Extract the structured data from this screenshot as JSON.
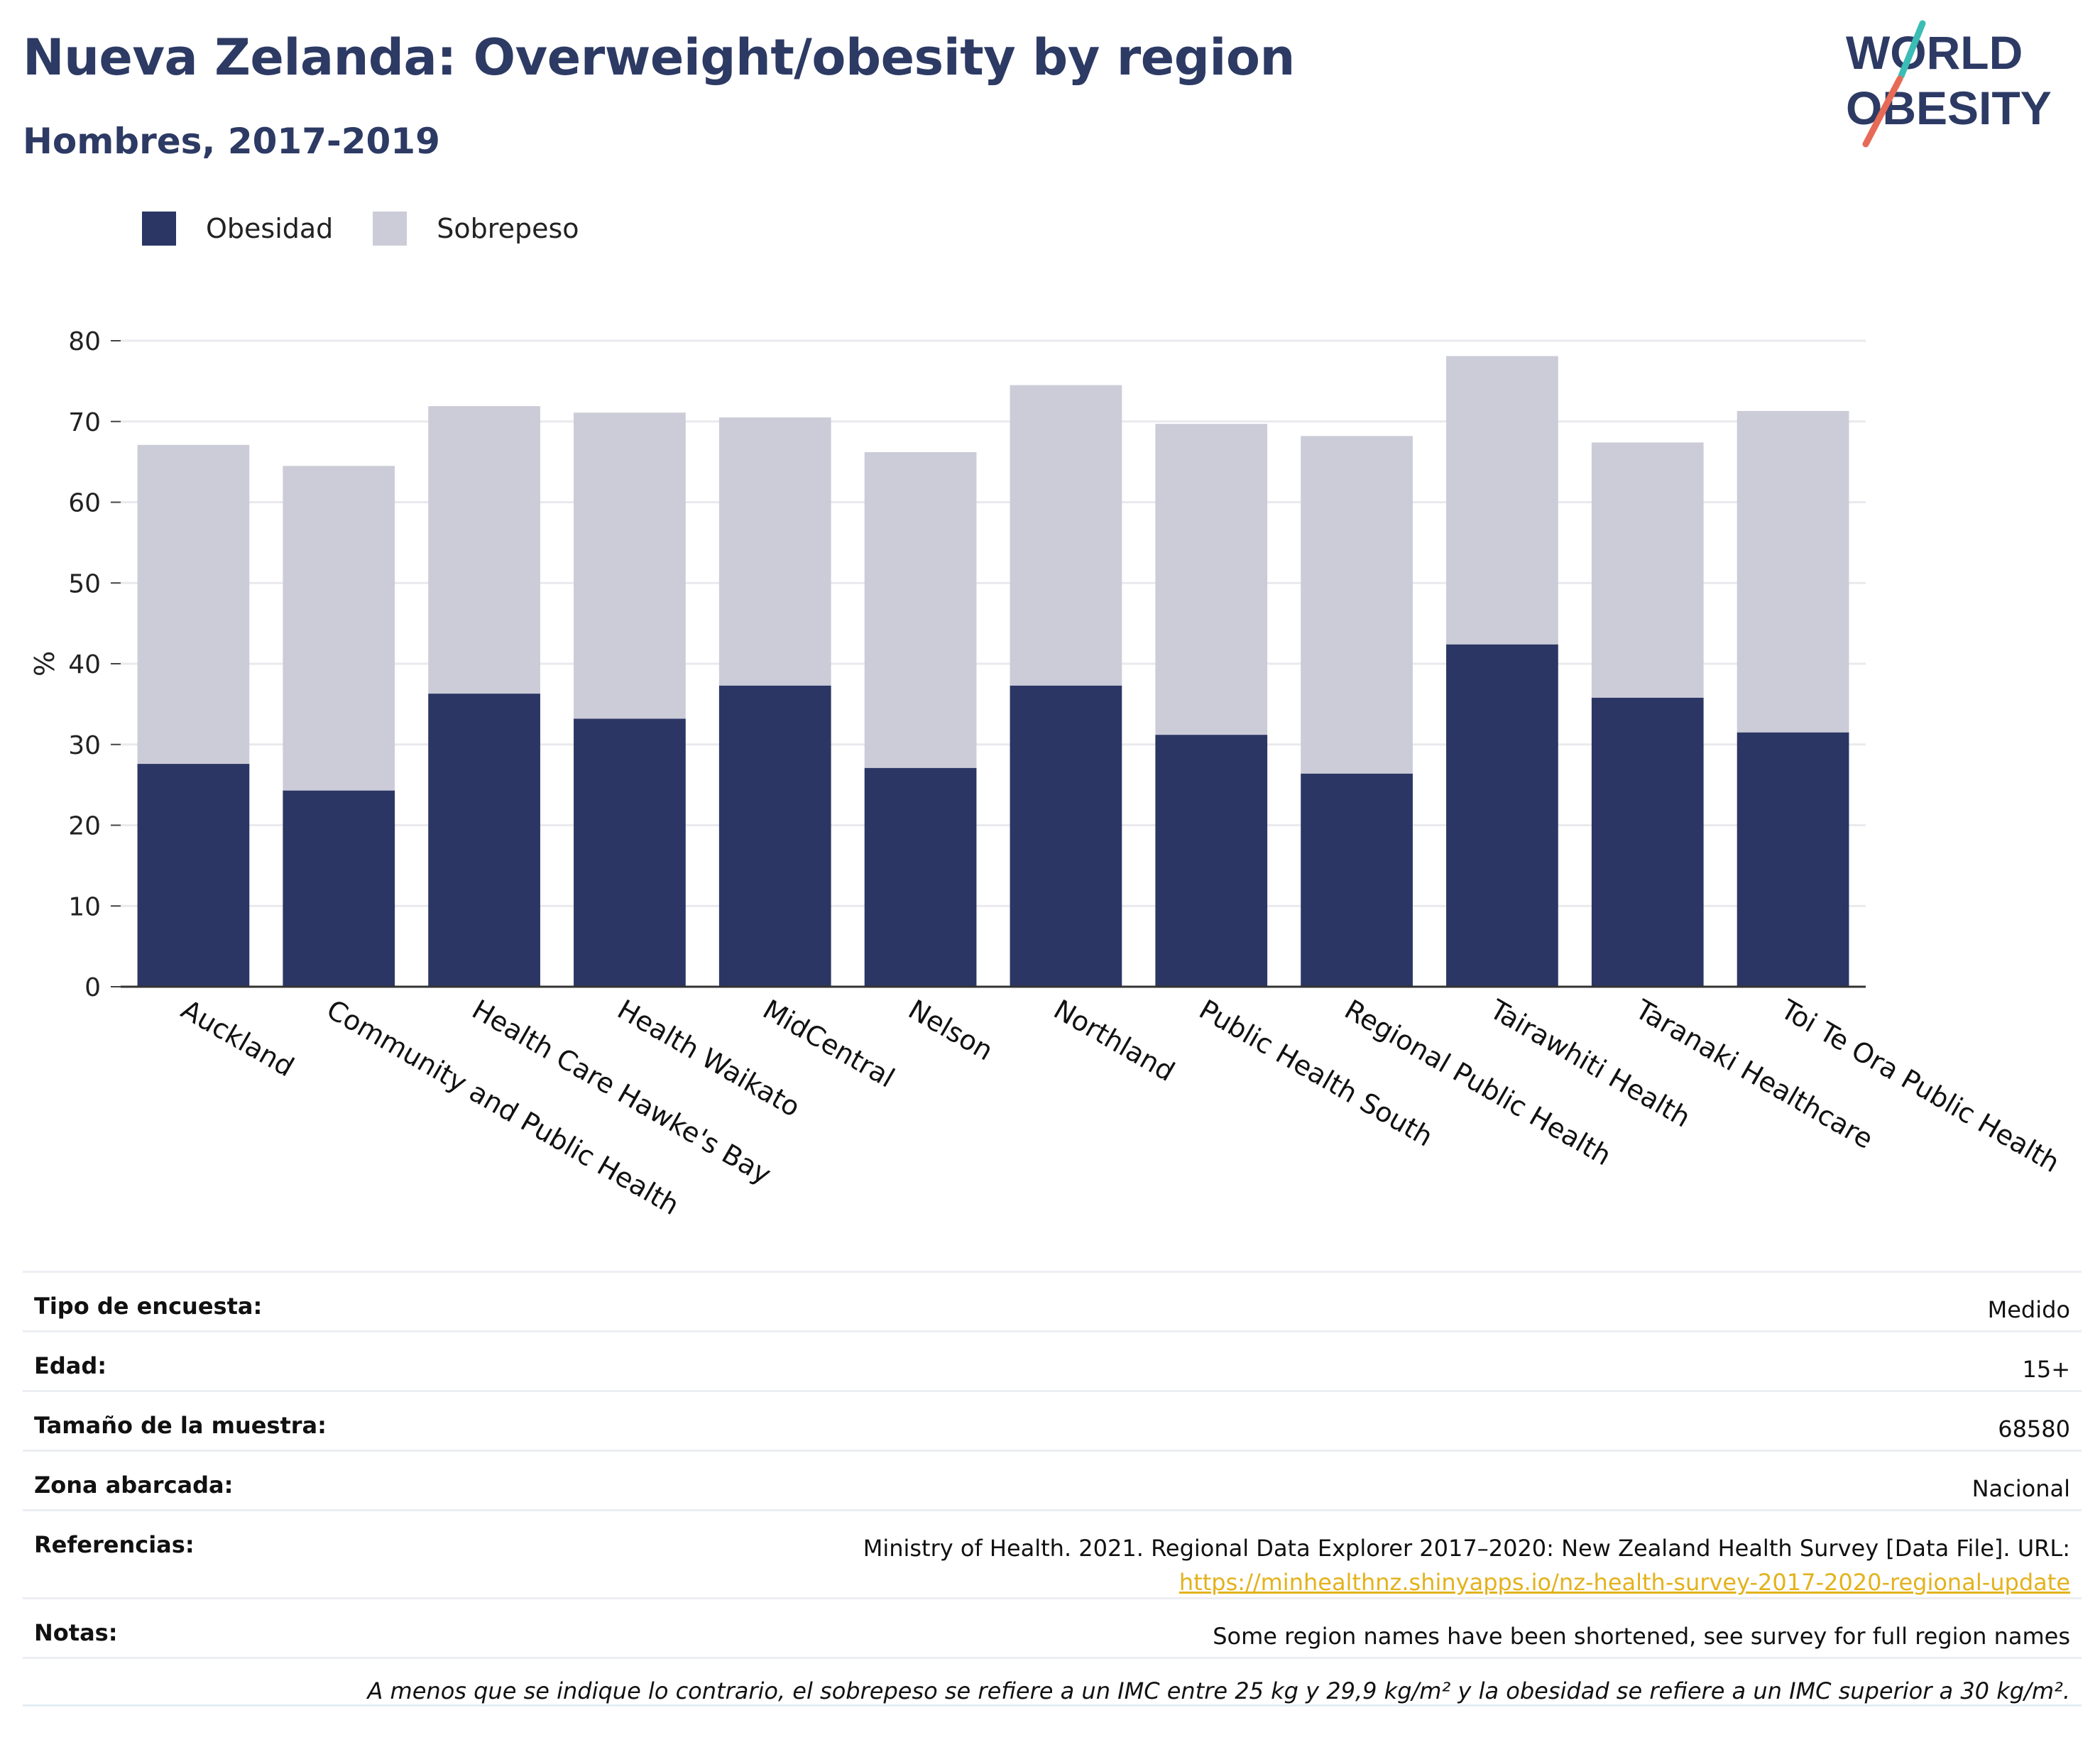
{
  "header": {
    "title": "Nueva Zelanda: Overweight/obesity by region",
    "subtitle": "Hombres, 2017-2019"
  },
  "logo": {
    "line1": "WORLD",
    "line2": "OBESITY",
    "name": "world-obesity-logo"
  },
  "legend": [
    {
      "label": "Obesidad",
      "color": "#2b3664"
    },
    {
      "label": "Sobrepeso",
      "color": "#cbccd8"
    }
  ],
  "chart_data": {
    "type": "bar",
    "stacked": true,
    "title": "Nueva Zelanda: Overweight/obesity by region",
    "subtitle": "Hombres, 2017-2019",
    "xlabel": "",
    "ylabel": "%",
    "ylim": [
      0,
      80
    ],
    "yticks": [
      0,
      10,
      20,
      30,
      40,
      50,
      60,
      70,
      80
    ],
    "grid": true,
    "legend_position": "top-left",
    "categories": [
      "Auckland",
      "Community and Public Health",
      "Health Care Hawke's Bay",
      "Health Waikato",
      "MidCentral",
      "Nelson",
      "Northland",
      "Public Health South",
      "Regional Public Health",
      "Tairawhiti Health",
      "Taranaki Healthcare",
      "Toi Te Ora Public Health"
    ],
    "series": [
      {
        "name": "Obesidad",
        "color": "#2b3664",
        "values": [
          27.6,
          24.3,
          36.3,
          33.2,
          37.3,
          27.1,
          37.3,
          31.2,
          26.4,
          42.4,
          35.8,
          31.5
        ]
      },
      {
        "name": "Sobrepeso",
        "color": "#cbccd8",
        "values": [
          39.5,
          40.2,
          35.6,
          37.9,
          33.2,
          39.1,
          37.2,
          38.5,
          41.8,
          35.7,
          31.6,
          39.8
        ]
      }
    ],
    "totals": [
      67.1,
      64.5,
      71.9,
      71.1,
      70.5,
      66.2,
      74.5,
      69.7,
      68.2,
      78.1,
      67.4,
      71.3
    ]
  },
  "info_table": {
    "rows": [
      {
        "label": "Tipo de encuesta:",
        "value": "Medido"
      },
      {
        "label": "Edad:",
        "value": "15+"
      },
      {
        "label": "Tamaño de la muestra:",
        "value": "68580"
      },
      {
        "label": "Zona abarcada:",
        "value": "Nacional"
      },
      {
        "label": "Referencias:",
        "value": "Ministry of Health. 2021. Regional Data Explorer 2017–2020: New Zealand Health Survey [Data File]. URL:",
        "link": "https://minhealthnz.shinyapps.io/nz-health-survey-2017-2020-regional-update"
      },
      {
        "label": "Notas:",
        "value": "Some region names have been shortened, see survey for full region names"
      }
    ],
    "footnote": "A menos que se indique lo contrario, el sobrepeso se refiere a un IMC entre 25 kg y 29,9 kg/m² y la obesidad se refiere a un IMC superior a 30 kg/m²."
  }
}
